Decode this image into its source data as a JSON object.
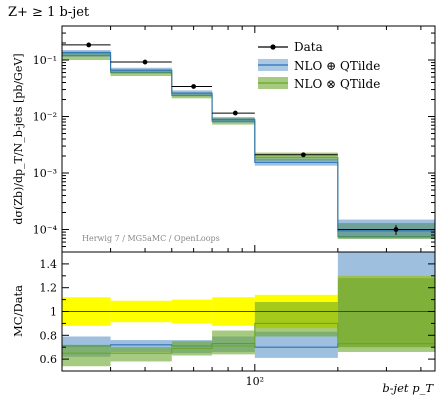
{
  "title": "Z+ ≥ 1 b-jet",
  "watermark": "Herwig 7 / MG5aMC / OpenLoops",
  "chart_data": [
    {
      "type": "line",
      "panel": "main",
      "ylabel": "dσ(Zb)/dp_T/N_b-jets [pb/GeV]",
      "yscale": "log",
      "xscale": "log",
      "xlim": [
        20,
        450
      ],
      "ylim": [
        4e-05,
        0.4
      ],
      "y_ticks": [
        {
          "value": 0.1,
          "label": "10⁻¹"
        },
        {
          "value": 0.01,
          "label": "10⁻²"
        },
        {
          "value": 0.001,
          "label": "10⁻³"
        },
        {
          "value": 0.0001,
          "label": "10⁻⁴"
        }
      ],
      "legend_position": "top-right",
      "bins": [
        [
          20,
          30
        ],
        [
          30,
          50
        ],
        [
          50,
          70
        ],
        [
          70,
          100
        ],
        [
          100,
          200
        ],
        [
          200,
          450
        ]
      ],
      "series": [
        {
          "name": "Data",
          "style": "points",
          "color": "#000000",
          "x": [
            25,
            40,
            60,
            85,
            150,
            325
          ],
          "y": [
            0.185,
            0.092,
            0.034,
            0.0115,
            0.0021,
            0.0001
          ],
          "yerr": [
            0.006,
            0.003,
            0.0012,
            0.0006,
            0.00015,
            2e-05
          ]
        },
        {
          "name": "NLO ⊕ QTilde",
          "style": "band",
          "color": "#2b72b8",
          "central": [
            0.135,
            0.066,
            0.026,
            0.0088,
            0.00155,
            9.5e-05
          ],
          "low": [
            0.115,
            0.058,
            0.023,
            0.0078,
            0.00135,
            7e-05
          ],
          "high": [
            0.15,
            0.073,
            0.029,
            0.0098,
            0.0018,
            0.00015
          ]
        },
        {
          "name": "NLO ⊗ QTilde",
          "style": "band",
          "color": "#6aa629",
          "central": [
            0.12,
            0.06,
            0.0235,
            0.0082,
            0.0019,
            7.5e-05
          ],
          "low": [
            0.1,
            0.052,
            0.021,
            0.0072,
            0.00165,
            6.8e-05
          ],
          "high": [
            0.14,
            0.068,
            0.0265,
            0.0094,
            0.0023,
            0.00013
          ]
        }
      ]
    },
    {
      "type": "line",
      "panel": "ratio",
      "xlabel": "b-jet p_T",
      "ylabel": "MC/Data",
      "xscale": "log",
      "xlim": [
        20,
        450
      ],
      "ylim": [
        0.5,
        1.5
      ],
      "y_ticks": [
        {
          "value": 0.6,
          "label": "0.6"
        },
        {
          "value": 0.8,
          "label": "0.8"
        },
        {
          "value": 1.0,
          "label": "1"
        },
        {
          "value": 1.2,
          "label": "1.2"
        },
        {
          "value": 1.4,
          "label": "1.4"
        }
      ],
      "x_ticks": [
        {
          "value": 100,
          "label": "10²"
        }
      ],
      "bins": [
        [
          20,
          30
        ],
        [
          30,
          50
        ],
        [
          50,
          70
        ],
        [
          70,
          100
        ],
        [
          100,
          200
        ],
        [
          200,
          450
        ]
      ],
      "data_uncertainty": {
        "color": "#ffff00",
        "low": [
          0.88,
          0.91,
          0.9,
          0.88,
          0.86,
          0.7
        ],
        "high": [
          1.12,
          1.09,
          1.1,
          1.12,
          1.14,
          1.3
        ]
      },
      "series": [
        {
          "name": "NLO ⊕ QTilde",
          "color": "#2b72b8",
          "central": [
            0.71,
            0.72,
            0.71,
            0.73,
            0.7,
            0.73
          ],
          "low": [
            0.62,
            0.66,
            0.65,
            0.66,
            0.61,
            0.7
          ],
          "high": [
            0.79,
            0.76,
            0.76,
            0.79,
            0.83,
            1.5
          ]
        },
        {
          "name": "NLO ⊗ QTilde",
          "color": "#6aa629",
          "central": [
            0.65,
            0.65,
            0.69,
            0.71,
            0.9,
            0.73
          ],
          "low": [
            0.54,
            0.58,
            0.63,
            0.64,
            0.79,
            0.66
          ],
          "high": [
            0.72,
            0.7,
            0.75,
            0.84,
            1.08,
            1.28
          ]
        }
      ]
    }
  ]
}
